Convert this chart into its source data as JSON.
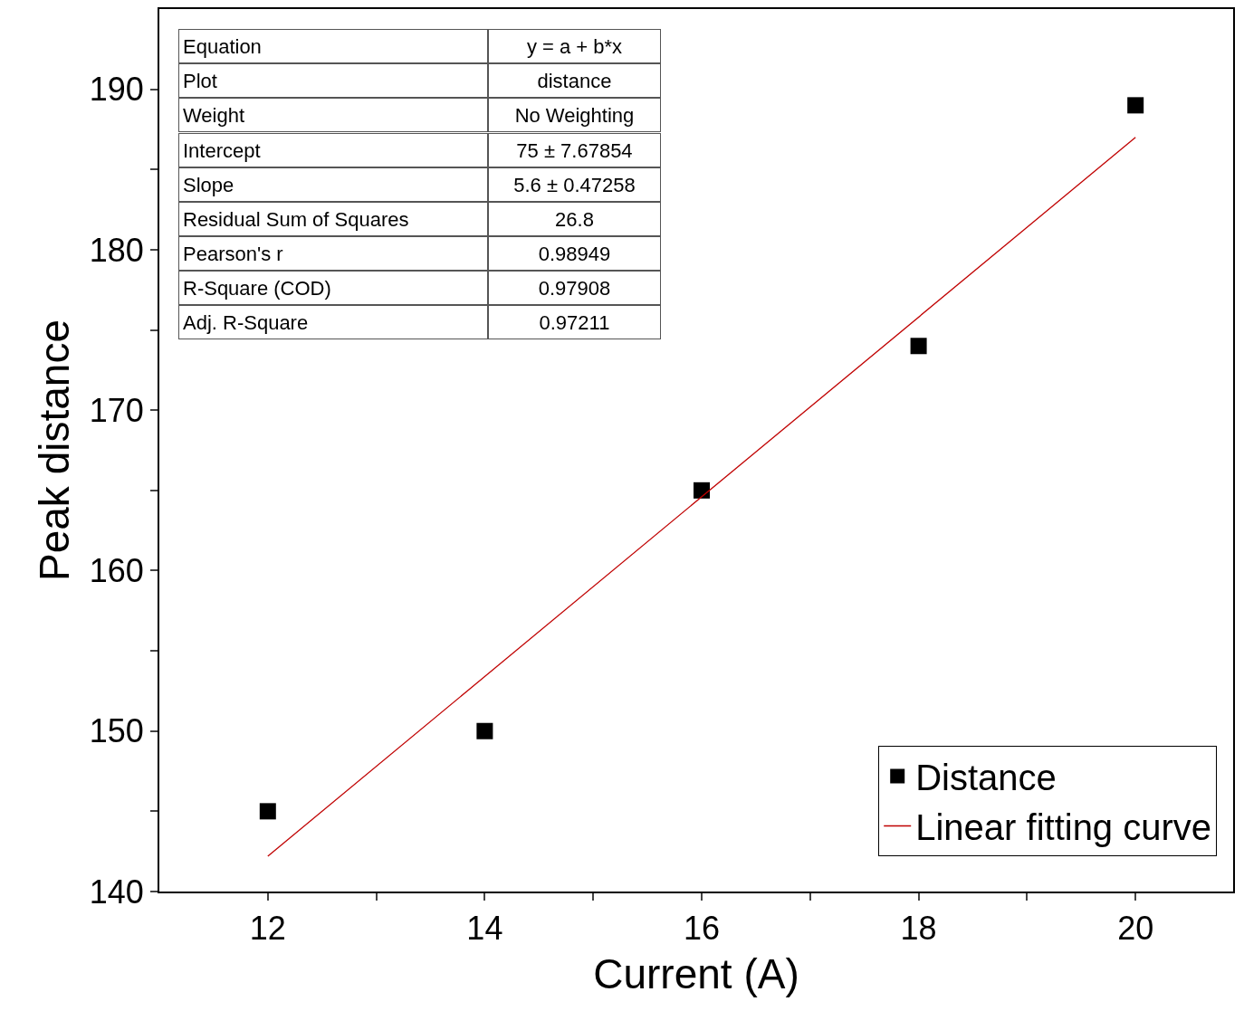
{
  "chart_data": {
    "type": "scatter",
    "xlabel": "Current (A)",
    "ylabel": "Peak distance",
    "x": [
      12,
      14,
      16,
      18,
      20
    ],
    "series": [
      {
        "name": "Distance",
        "color": "#000000",
        "values": [
          145,
          150,
          165,
          174,
          189
        ],
        "marker": "square"
      },
      {
        "name": "Linear fitting curve",
        "type": "line",
        "color": "#c00000",
        "x": [
          12,
          20
        ],
        "values": [
          142.2,
          187
        ],
        "marker": "none",
        "line_style": "solid"
      }
    ],
    "xlim": [
      11,
      20.9
    ],
    "ylim": [
      140,
      195
    ],
    "xticks": [
      12,
      {
        "value": 13,
        "label": null
      },
      14,
      {
        "value": 15,
        "label": null
      },
      16,
      {
        "value": 17,
        "label": null
      },
      18,
      {
        "value": 19,
        "label": null
      },
      20
    ],
    "yticks": [
      140,
      {
        "value": 145,
        "label": null
      },
      150,
      {
        "value": 155,
        "label": null
      },
      160,
      {
        "value": 165,
        "label": null
      },
      170,
      {
        "value": 175,
        "label": null
      },
      180,
      {
        "value": 185,
        "label": null
      },
      190
    ],
    "legend": "bottom right",
    "annotations": [
      "Equation",
      "y = a + b*x",
      "Plot",
      "distance",
      "Weight",
      "No Weighting",
      "Intercept",
      "75 ± 7.67854",
      "Slope",
      "5.6 ± 0.47258",
      "Residual Sum of Squares",
      "26.8",
      "Pearson's r",
      "0.98949",
      "R-Square (COD)",
      "0.97908",
      "Adj. R-Square",
      "0.97211"
    ]
  }
}
